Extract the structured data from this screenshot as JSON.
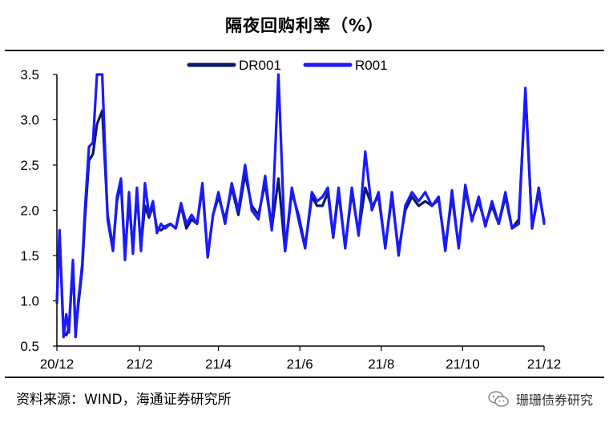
{
  "page_title": "隔夜回购利率（%）",
  "source": "资料来源：WIND，海通证券研究所",
  "watermark": {
    "text": "珊珊债券研究",
    "icon": "wechat-icon"
  },
  "chart_data": {
    "type": "line",
    "title": "隔夜回购利率（%）",
    "xlabel": "",
    "ylabel": "",
    "ylim": [
      0.5,
      3.5
    ],
    "yticks": [
      0.5,
      1.0,
      1.5,
      2.0,
      2.5,
      3.0,
      3.5
    ],
    "ytick_labels": [
      "0.5",
      "1.0",
      "1.5",
      "2.0",
      "2.5",
      "3.0",
      "3.5"
    ],
    "xlim": [
      "2020-12-01",
      "2021-12-01"
    ],
    "xticks": [
      "2020-12-01",
      "2021-02-01",
      "2021-04-01",
      "2021-06-01",
      "2021-08-01",
      "2021-10-01",
      "2021-12-01"
    ],
    "xtick_labels": [
      "20/12",
      "21/2",
      "21/4",
      "21/6",
      "21/8",
      "21/10",
      "21/12"
    ],
    "legend_position": "top-center",
    "grid": false,
    "series": [
      {
        "name": "DR001",
        "color": "#0a1a6b",
        "x": [
          "2020-12-01",
          "2020-12-03",
          "2020-12-06",
          "2020-12-08",
          "2020-12-10",
          "2020-12-13",
          "2020-12-15",
          "2020-12-17",
          "2020-12-20",
          "2020-12-22",
          "2020-12-25",
          "2020-12-28",
          "2020-12-31",
          "2021-01-04",
          "2021-01-08",
          "2021-01-12",
          "2021-01-15",
          "2021-01-18",
          "2021-01-21",
          "2021-01-24",
          "2021-01-27",
          "2021-01-30",
          "2021-02-02",
          "2021-02-05",
          "2021-02-08",
          "2021-02-11",
          "2021-02-14",
          "2021-02-17",
          "2021-02-20",
          "2021-02-24",
          "2021-02-28",
          "2021-03-04",
          "2021-03-08",
          "2021-03-12",
          "2021-03-16",
          "2021-03-20",
          "2021-03-24",
          "2021-03-28",
          "2021-04-01",
          "2021-04-06",
          "2021-04-11",
          "2021-04-16",
          "2021-04-21",
          "2021-04-26",
          "2021-05-01",
          "2021-05-06",
          "2021-05-11",
          "2021-05-16",
          "2021-05-21",
          "2021-05-26",
          "2021-05-31",
          "2021-06-05",
          "2021-06-10",
          "2021-06-14",
          "2021-06-18",
          "2021-06-22",
          "2021-06-26",
          "2021-06-30",
          "2021-07-05",
          "2021-07-10",
          "2021-07-15",
          "2021-07-20",
          "2021-07-25",
          "2021-07-30",
          "2021-08-04",
          "2021-08-09",
          "2021-08-14",
          "2021-08-19",
          "2021-08-24",
          "2021-08-29",
          "2021-09-03",
          "2021-09-08",
          "2021-09-13",
          "2021-09-18",
          "2021-09-23",
          "2021-09-28",
          "2021-10-03",
          "2021-10-08",
          "2021-10-13",
          "2021-10-18",
          "2021-10-23",
          "2021-10-28",
          "2021-11-02",
          "2021-11-07",
          "2021-11-12",
          "2021-11-17",
          "2021-11-22",
          "2021-11-27",
          "2021-12-01"
        ],
        "y": [
          0.98,
          1.75,
          0.65,
          0.62,
          0.7,
          1.42,
          0.65,
          0.95,
          1.35,
          1.9,
          2.55,
          2.62,
          2.95,
          3.1,
          1.95,
          1.58,
          2.1,
          2.3,
          1.5,
          2.1,
          1.58,
          2.18,
          1.6,
          2.05,
          1.92,
          2.05,
          1.8,
          1.78,
          1.82,
          1.85,
          1.8,
          2.05,
          1.8,
          1.9,
          1.85,
          2.25,
          1.5,
          1.95,
          2.15,
          1.9,
          2.25,
          1.95,
          2.4,
          2.05,
          1.95,
          2.3,
          1.8,
          2.35,
          1.55,
          2.2,
          1.95,
          1.6,
          2.15,
          2.05,
          2.05,
          2.2,
          1.7,
          2.2,
          1.6,
          2.2,
          1.75,
          2.25,
          2.05,
          2.15,
          1.6,
          2.15,
          1.55,
          2.0,
          2.15,
          2.05,
          2.1,
          2.05,
          2.12,
          1.6,
          2.15,
          1.6,
          2.22,
          1.9,
          2.1,
          1.85,
          2.05,
          1.85,
          2.15,
          1.8,
          1.9,
          3.3,
          1.8,
          2.2,
          1.88
        ]
      },
      {
        "name": "R001",
        "color": "#1a1aff",
        "x": [
          "2020-12-01",
          "2020-12-03",
          "2020-12-06",
          "2020-12-08",
          "2020-12-10",
          "2020-12-13",
          "2020-12-15",
          "2020-12-17",
          "2020-12-20",
          "2020-12-22",
          "2020-12-25",
          "2020-12-28",
          "2020-12-31",
          "2021-01-04",
          "2021-01-08",
          "2021-01-12",
          "2021-01-15",
          "2021-01-18",
          "2021-01-21",
          "2021-01-24",
          "2021-01-27",
          "2021-01-30",
          "2021-02-02",
          "2021-02-05",
          "2021-02-08",
          "2021-02-11",
          "2021-02-14",
          "2021-02-17",
          "2021-02-20",
          "2021-02-24",
          "2021-02-28",
          "2021-03-04",
          "2021-03-08",
          "2021-03-12",
          "2021-03-16",
          "2021-03-20",
          "2021-03-24",
          "2021-03-28",
          "2021-04-01",
          "2021-04-06",
          "2021-04-11",
          "2021-04-16",
          "2021-04-21",
          "2021-04-26",
          "2021-05-01",
          "2021-05-06",
          "2021-05-11",
          "2021-05-16",
          "2021-05-21",
          "2021-05-26",
          "2021-05-31",
          "2021-06-05",
          "2021-06-10",
          "2021-06-14",
          "2021-06-18",
          "2021-06-22",
          "2021-06-26",
          "2021-06-30",
          "2021-07-05",
          "2021-07-10",
          "2021-07-15",
          "2021-07-20",
          "2021-07-25",
          "2021-07-30",
          "2021-08-04",
          "2021-08-09",
          "2021-08-14",
          "2021-08-19",
          "2021-08-24",
          "2021-08-29",
          "2021-09-03",
          "2021-09-08",
          "2021-09-13",
          "2021-09-18",
          "2021-09-23",
          "2021-09-28",
          "2021-10-03",
          "2021-10-08",
          "2021-10-13",
          "2021-10-18",
          "2021-10-23",
          "2021-10-28",
          "2021-11-02",
          "2021-11-07",
          "2021-11-12",
          "2021-11-17",
          "2021-11-22",
          "2021-11-27",
          "2021-12-01"
        ],
        "y": [
          1.0,
          1.78,
          0.6,
          0.85,
          0.65,
          1.45,
          0.6,
          1.0,
          1.4,
          2.0,
          2.7,
          2.75,
          3.5,
          3.5,
          1.9,
          1.55,
          2.15,
          2.35,
          1.45,
          2.2,
          1.52,
          2.25,
          1.55,
          2.3,
          1.95,
          2.1,
          1.75,
          1.85,
          1.8,
          1.85,
          1.8,
          2.08,
          1.85,
          1.95,
          1.85,
          2.3,
          1.48,
          1.95,
          2.2,
          1.85,
          2.3,
          2.0,
          2.5,
          2.0,
          1.9,
          2.38,
          1.78,
          3.5,
          1.55,
          2.25,
          1.9,
          1.58,
          2.2,
          2.1,
          2.15,
          2.25,
          1.72,
          2.25,
          1.58,
          2.25,
          1.72,
          2.65,
          2.0,
          2.2,
          1.58,
          2.2,
          1.5,
          2.05,
          2.2,
          2.1,
          2.2,
          2.05,
          2.15,
          1.55,
          2.22,
          1.58,
          2.28,
          1.88,
          2.15,
          1.82,
          2.1,
          1.85,
          2.2,
          1.8,
          1.85,
          3.35,
          1.8,
          2.25,
          1.85
        ]
      }
    ]
  }
}
